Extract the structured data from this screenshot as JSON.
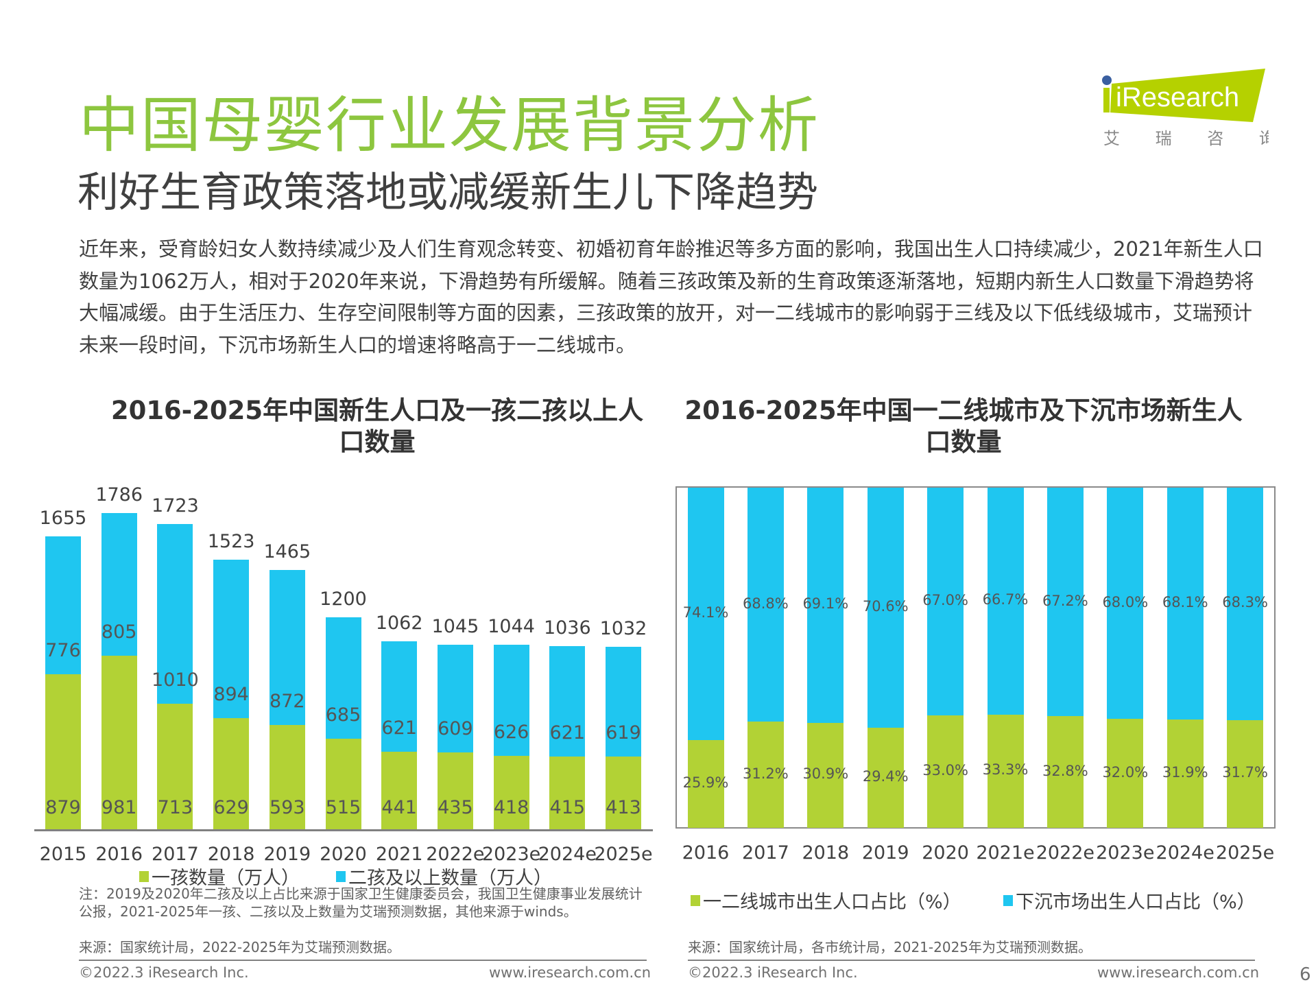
{
  "header": {
    "title": "中国母婴行业发展背景分析",
    "subtitle": "利好生育政策落地或减缓新生儿下降趋势",
    "paragraph": "近年来，受育龄妇女人数持续减少及人们生育观念转变、初婚初育年龄推迟等多方面的影响，我国出生人口持续减少，2021年新生人口数量为1062万人，相对于2020年来说，下滑趋势有所缓解。随着三孩政策及新的生育政策逐渐落地，短期内新生人口数量下滑趋势将大幅减缓。由于生活压力、生存空间限制等方面的因素，三孩政策的放开，对一二线城市的影响弱于三线及以下低线级城市，艾瑞预计未来一段时间，下沉市场新生人口的增速将略高于一二线城市。"
  },
  "logo": {
    "text": "iResearch",
    "cn": "艾 瑞 咨 询",
    "color": "#b5d100",
    "dot_color": "#3a5fa0"
  },
  "colors": {
    "green": "#b2d235",
    "blue": "#1fc6f0",
    "title_green": "#8dc63f"
  },
  "chart_data": [
    {
      "type": "bar",
      "stacked": true,
      "title": "2016-2025年中国新生人口及一孩二孩以上人口数量",
      "categories": [
        "2015",
        "2016",
        "2017",
        "2018",
        "2019",
        "2020",
        "2021",
        "2022e",
        "2023e",
        "2024e",
        "2025e"
      ],
      "series": [
        {
          "name": "一孩数量（万人）",
          "color": "#b2d235",
          "values": [
            879,
            981,
            713,
            629,
            593,
            515,
            441,
            435,
            418,
            415,
            413
          ]
        },
        {
          "name": "二孩及以上数量（万人）",
          "color": "#1fc6f0",
          "values": [
            776,
            805,
            1010,
            894,
            872,
            685,
            621,
            609,
            626,
            621,
            619
          ]
        }
      ],
      "totals": [
        1655,
        1786,
        1723,
        1523,
        1465,
        1200,
        1062,
        1045,
        1044,
        1036,
        1032
      ],
      "ylim": [
        0,
        1786
      ],
      "grid": false,
      "legend": "bottom",
      "note": "注：2019及2020年二孩及以上占比来源于国家卫生健康委员会，我国卫生健康事业发展统计公报，2021-2025年一孩、二孩以及上数量为艾瑞预测数据，其他来源于winds。",
      "source": "来源：国家统计局，2022-2025年为艾瑞预测数据。"
    },
    {
      "type": "bar",
      "stacked": true,
      "percent": true,
      "title": "2016-2025年中国一二线城市及下沉市场新生人口数量",
      "categories": [
        "2016",
        "2017",
        "2018",
        "2019",
        "2020",
        "2021e",
        "2022e",
        "2023e",
        "2024e",
        "2025e"
      ],
      "series": [
        {
          "name": "一二线城市出生人口占比（%）",
          "color": "#b2d235",
          "values": [
            25.9,
            31.2,
            30.9,
            29.4,
            33.0,
            33.3,
            32.8,
            32.0,
            31.9,
            31.7
          ],
          "labels": [
            "25.9%",
            "31.2%",
            "30.9%",
            "29.4%",
            "33.0%",
            "33.3%",
            "32.8%",
            "32.0%",
            "31.9%",
            "31.7%"
          ]
        },
        {
          "name": "下沉市场出生人口占比（%）",
          "color": "#1fc6f0",
          "values": [
            74.1,
            68.8,
            69.1,
            70.6,
            67.0,
            66.7,
            67.2,
            68.0,
            68.1,
            68.3
          ],
          "labels": [
            "74.1%",
            "68.8%",
            "69.1%",
            "70.6%",
            "67.0%",
            "66.7%",
            "67.2%",
            "68.0%",
            "68.1%",
            "68.3%"
          ]
        }
      ],
      "ylim": [
        0,
        100
      ],
      "grid": false,
      "legend": "bottom",
      "source": "来源：国家统计局，各市统计局，2021-2025年为艾瑞预测数据。"
    }
  ],
  "footer": {
    "copyright": "©2022.3 iResearch Inc.",
    "url": "www.iresearch.com.cn",
    "page": "6"
  }
}
